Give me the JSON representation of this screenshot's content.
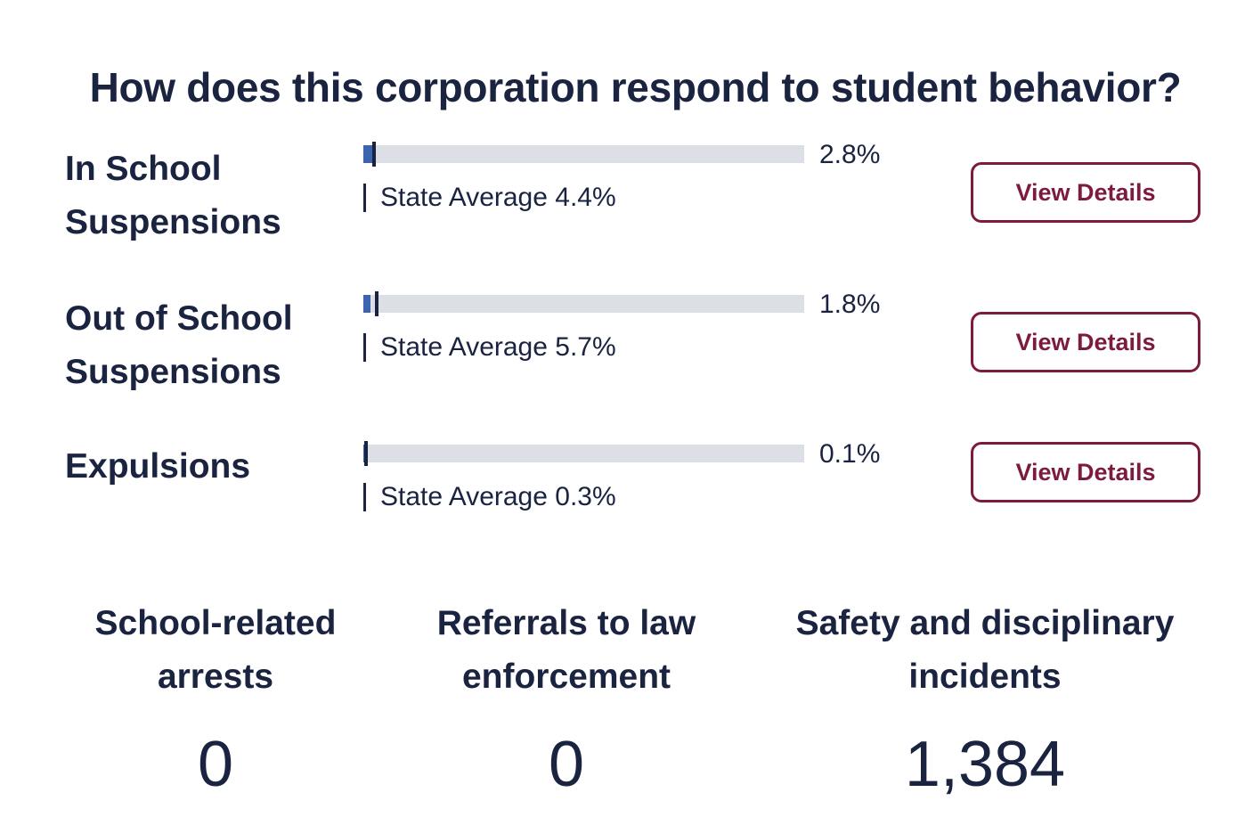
{
  "page": {
    "title": "How does this corporation respond to student behavior?"
  },
  "metrics": [
    {
      "label_line1": "In School",
      "label_line2": "Suspensions",
      "value": 2.8,
      "value_label": "2.8%",
      "state_average": 4.4,
      "state_average_label": "State Average 4.4%",
      "button_label": "View Details"
    },
    {
      "label_line1": "Out of School",
      "label_line2": "Suspensions",
      "value": 1.8,
      "value_label": "1.8%",
      "state_average": 5.7,
      "state_average_label": "State Average 5.7%",
      "button_label": "View Details"
    },
    {
      "label_line1": "Expulsions",
      "label_line2": "",
      "value": 0.1,
      "value_label": "0.1%",
      "state_average": 0.3,
      "state_average_label": "State Average 0.3%",
      "button_label": "View Details"
    }
  ],
  "stats": [
    {
      "label_line1": "School-related",
      "label_line2": "arrests",
      "value": "0"
    },
    {
      "label_line1": "Referrals to law",
      "label_line2": "enforcement",
      "value": "0"
    },
    {
      "label_line1": "Safety and disciplinary",
      "label_line2": "incidents",
      "value": "1,384"
    }
  ],
  "colors": {
    "heading": "#1a2340",
    "bar_fill": "#3a63b0",
    "bar_track": "#dcdfe5",
    "state_marker": "#1a2340",
    "button_accent": "#7d1a40"
  }
}
